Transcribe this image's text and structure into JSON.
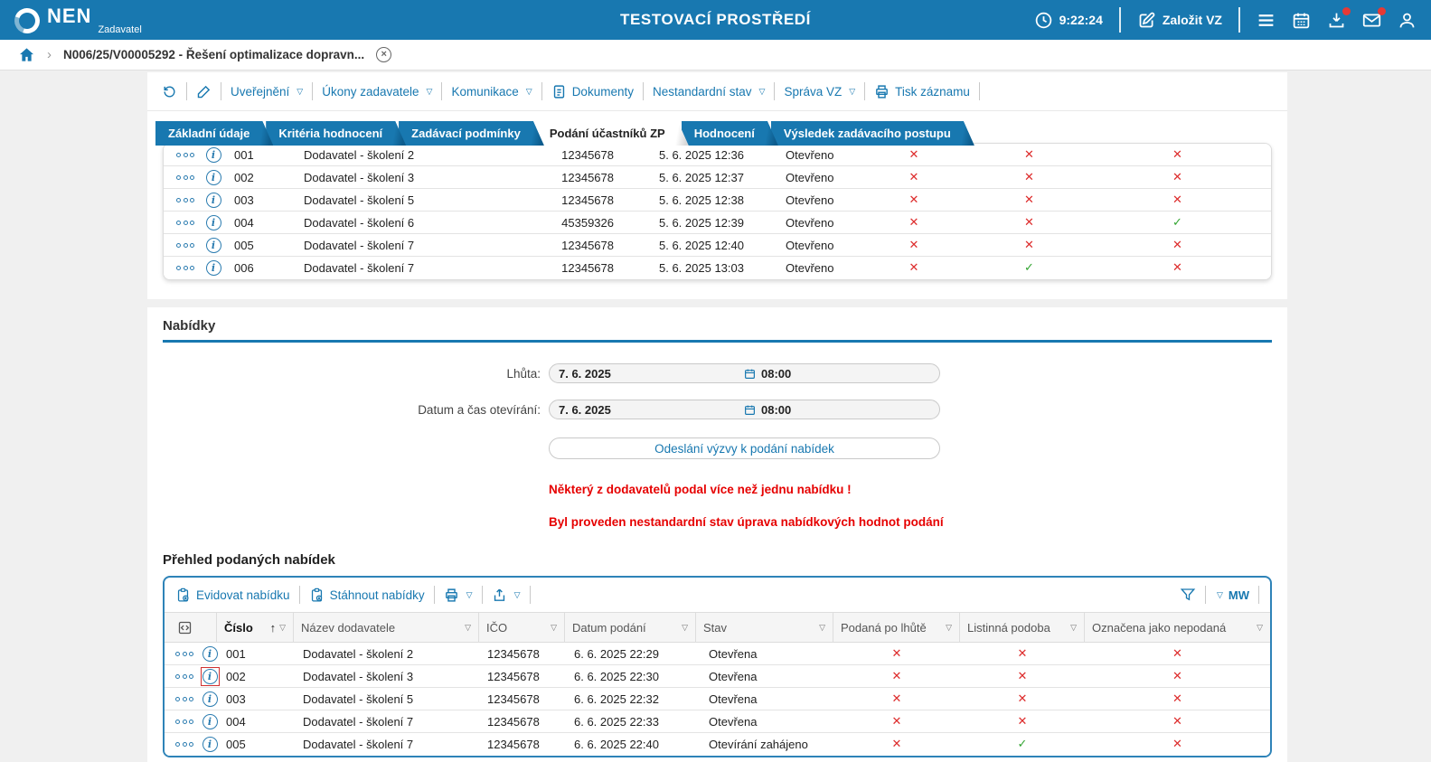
{
  "app": {
    "brand": "NEN",
    "brand_sub": "Zadavatel",
    "env_title": "TESTOVACÍ PROSTŘEDÍ",
    "clock": "9:22:24",
    "new_vz_label": "Založit VZ"
  },
  "breadcrumb": {
    "item": "N006/25/V00005292 - Řešení optimalizace dopravn..."
  },
  "record_toolbar": {
    "uverejneni": "Uveřejnění",
    "ukony": "Úkony zadavatele",
    "komunikace": "Komunikace",
    "dokumenty": "Dokumenty",
    "nestandardni": "Nestandardní stav",
    "sprava": "Správa VZ",
    "tisk": "Tisk záznamu"
  },
  "tabs": [
    {
      "label": "Základní údaje",
      "active": false
    },
    {
      "label": "Kritéria hodnocení",
      "active": false
    },
    {
      "label": "Zadávací podmínky",
      "active": false
    },
    {
      "label": "Podání účastníků ZP",
      "active": true
    },
    {
      "label": "Hodnocení",
      "active": false
    },
    {
      "label": "Výsledek zadávacího postupu",
      "active": false
    }
  ],
  "participants_table": {
    "rows": [
      {
        "cislo": "001",
        "nazev": "Dodavatel - školení 2",
        "ico": "12345678",
        "datum": "5. 6. 2025 12:36",
        "stav": "Otevřeno",
        "po_lhute": "no",
        "listinna": "no",
        "nepodana": "no"
      },
      {
        "cislo": "002",
        "nazev": "Dodavatel - školení 3",
        "ico": "12345678",
        "datum": "5. 6. 2025 12:37",
        "stav": "Otevřeno",
        "po_lhute": "no",
        "listinna": "no",
        "nepodana": "no"
      },
      {
        "cislo": "003",
        "nazev": "Dodavatel - školení 5",
        "ico": "12345678",
        "datum": "5. 6. 2025 12:38",
        "stav": "Otevřeno",
        "po_lhute": "no",
        "listinna": "no",
        "nepodana": "no"
      },
      {
        "cislo": "004",
        "nazev": "Dodavatel - školení 6",
        "ico": "45359326",
        "datum": "5. 6. 2025 12:39",
        "stav": "Otevřeno",
        "po_lhute": "no",
        "listinna": "no",
        "nepodana": "yes"
      },
      {
        "cislo": "005",
        "nazev": "Dodavatel - školení 7",
        "ico": "12345678",
        "datum": "5. 6. 2025 12:40",
        "stav": "Otevřeno",
        "po_lhute": "no",
        "listinna": "no",
        "nepodana": "no"
      },
      {
        "cislo": "006",
        "nazev": "Dodavatel - školení 7",
        "ico": "12345678",
        "datum": "5. 6. 2025 13:03",
        "stav": "Otevřeno",
        "po_lhute": "no",
        "listinna": "yes",
        "nepodana": "no"
      }
    ]
  },
  "offers_section": {
    "title": "Nabídky",
    "deadline_label": "Lhůta:",
    "deadline_date": "7. 6. 2025",
    "deadline_time": "08:00",
    "opening_label": "Datum a čas otevírání:",
    "opening_date": "7. 6. 2025",
    "opening_time": "08:00",
    "send_button": "Odeslání výzvy k podání nabídek",
    "warning_multiple": "Některý z dodavatelů podal více než jednu nabídku !",
    "warning_nonstandard": "Byl proveden nestandardní stav úprava nabídkových hodnot podání",
    "overview_title": "Přehled podaných nabídek"
  },
  "offers_table": {
    "toolbar": {
      "evidovat": "Evidovat nabídku",
      "stahnout": "Stáhnout nabídky",
      "mw": "MW"
    },
    "columns": [
      "",
      "Číslo",
      "Název dodavatele",
      "IČO",
      "Datum podání",
      "Stav",
      "Podaná po lhůtě",
      "Listinná podoba",
      "Označena jako nepodaná"
    ],
    "rows": [
      {
        "cislo": "001",
        "nazev": "Dodavatel - školení 2",
        "ico": "12345678",
        "datum": "6. 6. 2025 22:29",
        "stav": "Otevřena",
        "po_lhute": "no",
        "listinna": "no",
        "nepodana": "no"
      },
      {
        "cislo": "002",
        "nazev": "Dodavatel - školení 3",
        "ico": "12345678",
        "datum": "6. 6. 2025 22:30",
        "stav": "Otevřena",
        "po_lhute": "no",
        "listinna": "no",
        "nepodana": "no",
        "info_highlight": true
      },
      {
        "cislo": "003",
        "nazev": "Dodavatel - školení 5",
        "ico": "12345678",
        "datum": "6. 6. 2025 22:32",
        "stav": "Otevřena",
        "po_lhute": "no",
        "listinna": "no",
        "nepodana": "no"
      },
      {
        "cislo": "004",
        "nazev": "Dodavatel - školení 7",
        "ico": "12345678",
        "datum": "6. 6. 2025 22:33",
        "stav": "Otevřena",
        "po_lhute": "no",
        "listinna": "no",
        "nepodana": "no"
      },
      {
        "cislo": "005",
        "nazev": "Dodavatel - školení 7",
        "ico": "12345678",
        "datum": "6. 6. 2025 22:40",
        "stav": "Otevírání zahájeno",
        "po_lhute": "no",
        "listinna": "yes",
        "nepodana": "no"
      }
    ]
  },
  "colors": {
    "accent": "#1878b0",
    "warning_text": "#e60000",
    "mark_no": "#dd2c2c",
    "mark_yes": "#33a532",
    "page_bg": "#f0f0f0",
    "badge": "#e53935"
  }
}
